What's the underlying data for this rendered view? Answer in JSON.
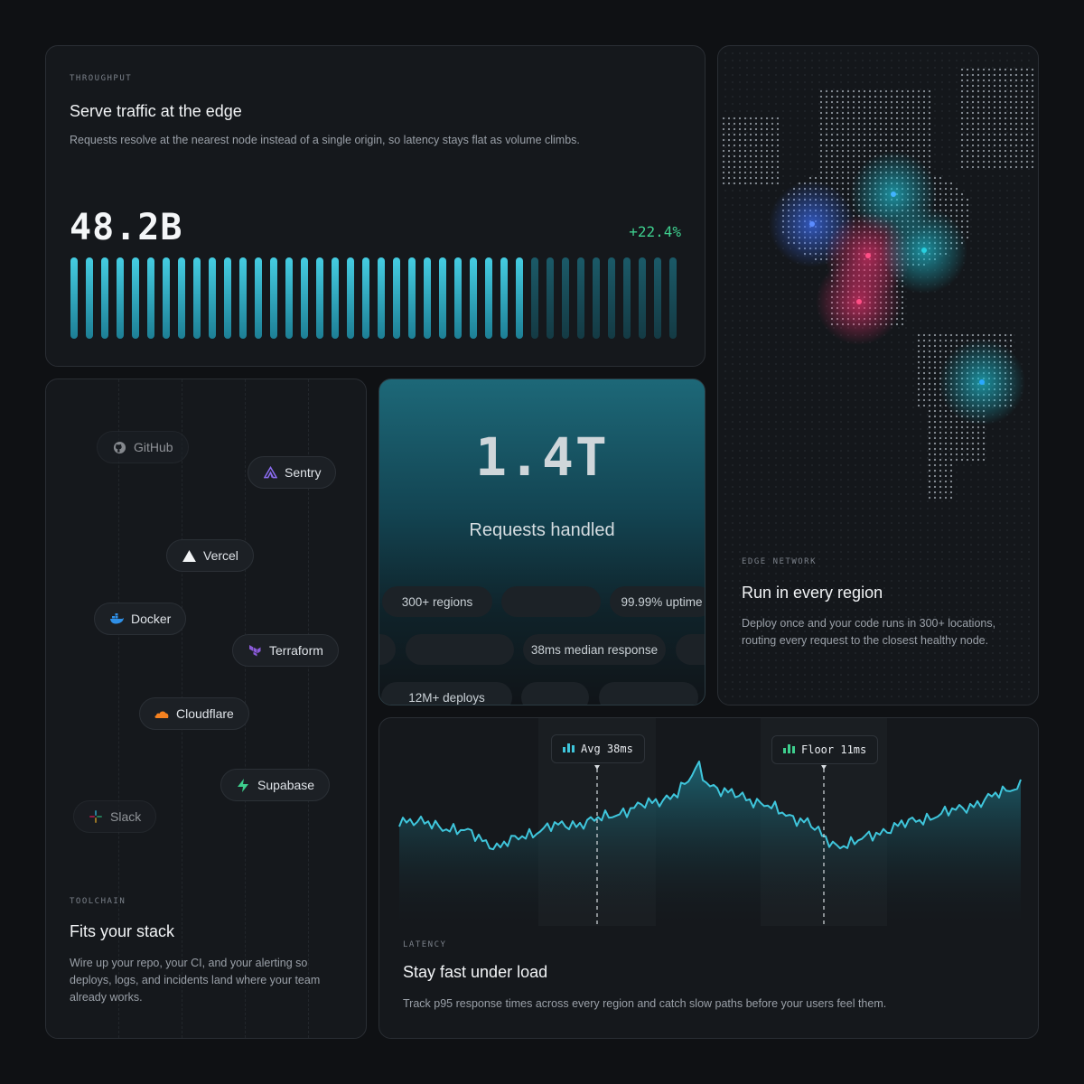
{
  "throughput": {
    "eyebrow": "THROUGHPUT",
    "title": "Serve traffic at the edge",
    "description": "Requests resolve at the nearest node instead of a single origin, so latency stays flat as volume climbs.",
    "value": "48.2B",
    "delta": "+22.4%",
    "bar_count": 40,
    "bars_filled": 30
  },
  "edge_network": {
    "eyebrow": "EDGE NETWORK",
    "title": "Run in every region",
    "description": "Deploy once and your code runs in 300+ locations, routing every request to the closest healthy node."
  },
  "toolchain": {
    "eyebrow": "TOOLCHAIN",
    "title": "Fits your stack",
    "description": "Wire up your repo, your CI, and your alerting so deploys, logs, and incidents land where your team already works.",
    "integrations": [
      {
        "name": "GitHub",
        "icon": "github-icon"
      },
      {
        "name": "Sentry",
        "icon": "sentry-icon"
      },
      {
        "name": "Vercel",
        "icon": "vercel-icon"
      },
      {
        "name": "Docker",
        "icon": "docker-icon"
      },
      {
        "name": "Terraform",
        "icon": "terraform-icon"
      },
      {
        "name": "Cloudflare",
        "icon": "cloudflare-icon"
      },
      {
        "name": "Supabase",
        "icon": "supabase-icon"
      },
      {
        "name": "Slack",
        "icon": "slack-icon"
      }
    ]
  },
  "requests": {
    "value": "1.4T",
    "label": "Requests handled",
    "pills": [
      "300+ regions",
      "99.99% uptime",
      "38ms median response",
      "12M+ deploys"
    ]
  },
  "latency": {
    "eyebrow": "LATENCY",
    "title": "Stay fast under load",
    "description": "Track p95 response times across every region and catch slow paths before your users feel them.",
    "markers": [
      {
        "label": "Avg 38ms",
        "icon": "bar-chart-icon"
      },
      {
        "label": "Floor 11ms",
        "icon": "bar-chart-icon"
      }
    ]
  },
  "colors": {
    "accent_cyan": "#3fc6dc",
    "positive_green": "#3ecf8e",
    "map_blue": "#3b6cf0",
    "map_pink": "#e0306a",
    "map_teal": "#1fb7c9"
  }
}
